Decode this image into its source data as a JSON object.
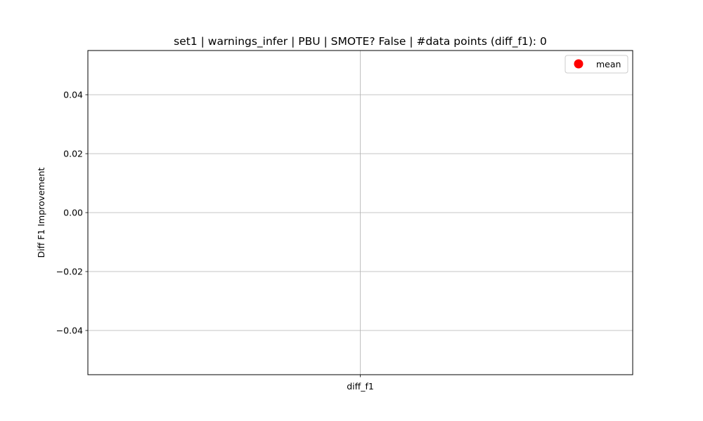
{
  "chart_data": {
    "type": "scatter",
    "title": "set1 | warnings_infer | PBU | SMOTE? False | #data points (diff_f1): 0",
    "xlabel": "",
    "ylabel": "Diff F1 Improvement",
    "categories": [
      "diff_f1"
    ],
    "series": [
      {
        "name": "mean",
        "values": []
      }
    ],
    "ylim": [
      -0.055,
      0.055
    ],
    "yticks": [
      -0.04,
      -0.02,
      0.0,
      0.02,
      0.04
    ],
    "ytick_labels": [
      "−0.04",
      "−0.02",
      "0.00",
      "0.02",
      "0.04"
    ],
    "grid": true,
    "legend_position": "upper right"
  },
  "colors": {
    "mean_marker": "#ff0000",
    "grid": "#b0b0b0",
    "axes": "#000000",
    "legend_border": "#cccccc"
  }
}
